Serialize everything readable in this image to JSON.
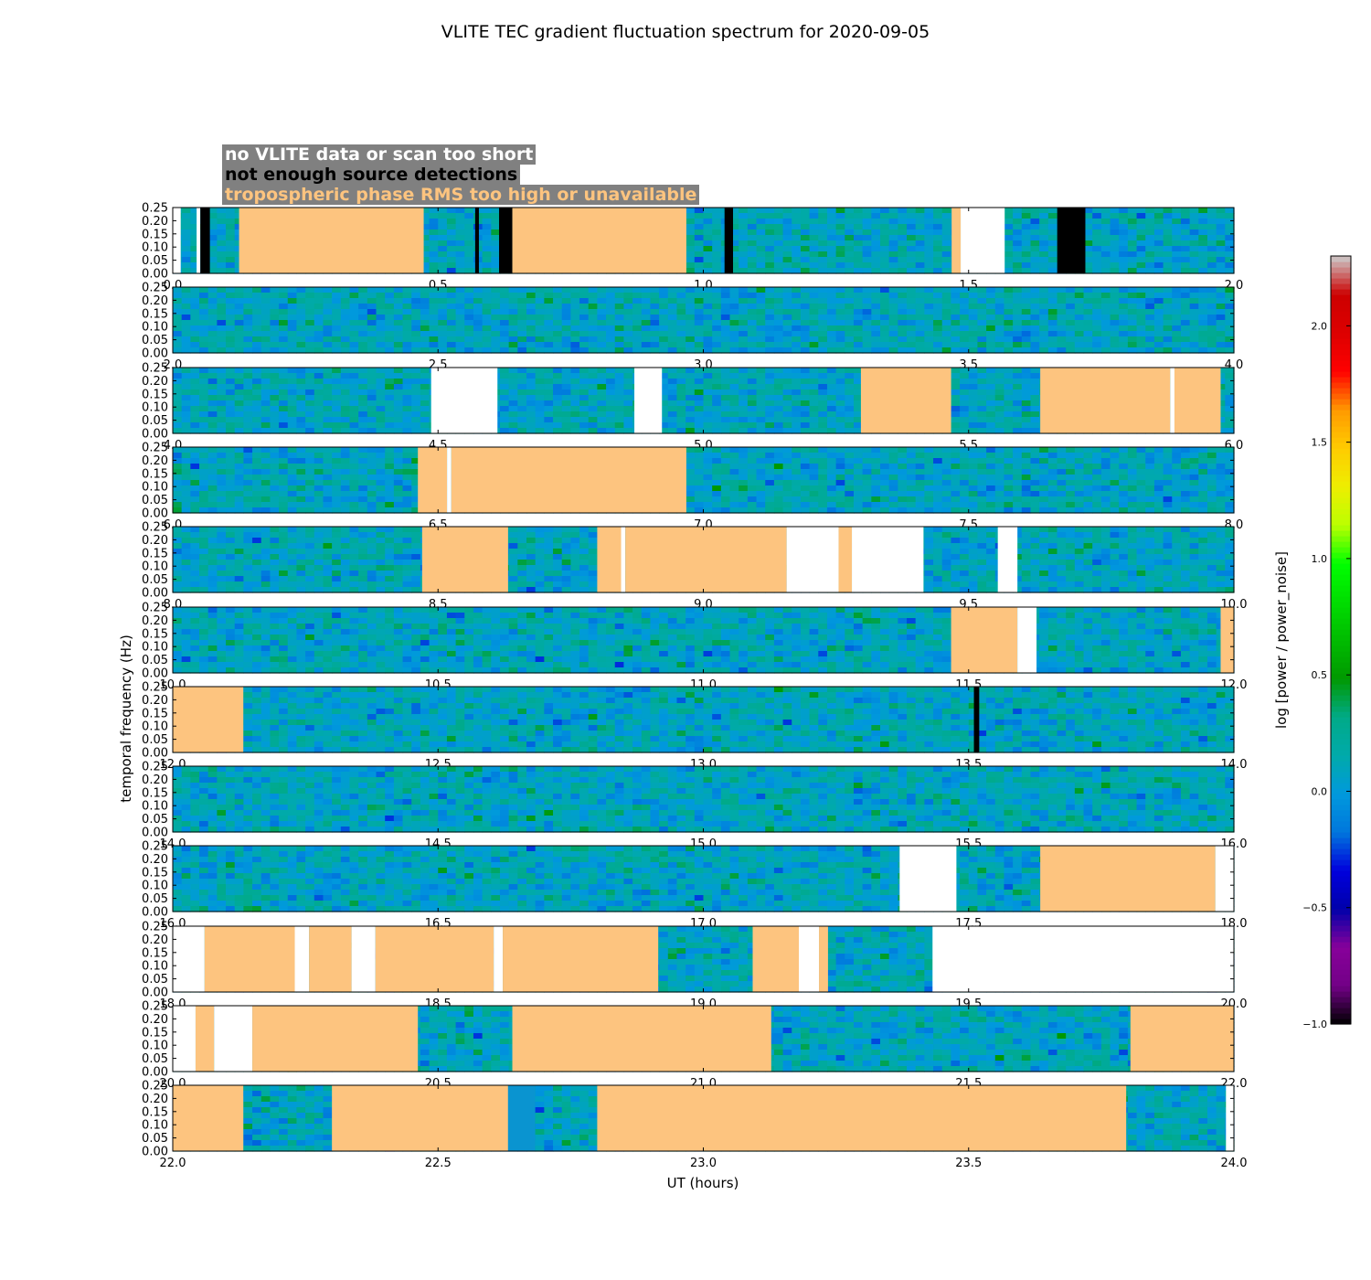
{
  "title": "VLITE TEC gradient fluctuation spectrum for 2020-09-05",
  "legend": [
    {
      "label": "no VLITE data or scan too short",
      "color": "#ffffff"
    },
    {
      "label": "not enough source detections",
      "color": "#000000"
    },
    {
      "label": "tropospheric phase RMS too high or unavailable",
      "color": "#fdc47f"
    }
  ],
  "chart_data": {
    "type": "heatmap",
    "xlabel": "UT (hours)",
    "ylabel": "temporal frequency (Hz)",
    "colorbar_label": "log [power / power_noise]",
    "colorbar_range": [
      -1.0,
      2.3
    ],
    "colorbar_ticks": [
      "2.0",
      "1.5",
      "1.0",
      "0.5",
      "0.0",
      "−0.5",
      "−1.0"
    ],
    "colorbar_tick_values": [
      2.0,
      1.5,
      1.0,
      0.5,
      0.0,
      -0.5,
      -1.0
    ],
    "colorbar_colormap": "nipy_spectral",
    "ylim": [
      0.0,
      0.25
    ],
    "ytick_labels": [
      "0.00",
      "0.05",
      "0.10",
      "0.15",
      "0.20",
      "0.25"
    ],
    "panels": [
      {
        "x_range": [
          0.0,
          2.0
        ],
        "xtick_labels": [
          "0.0",
          "0.5",
          "1.0",
          "1.5",
          "2.0"
        ],
        "masks": [
          {
            "start": 0.0,
            "end": 0.015,
            "flag": "white"
          },
          {
            "start": 0.045,
            "end": 0.052,
            "flag": "white"
          },
          {
            "start": 0.052,
            "end": 0.07,
            "flag": "black"
          },
          {
            "start": 0.125,
            "end": 0.473,
            "flag": "orange"
          },
          {
            "start": 0.57,
            "end": 0.577,
            "flag": "black"
          },
          {
            "start": 0.615,
            "end": 0.64,
            "flag": "black"
          },
          {
            "start": 0.64,
            "end": 0.968,
            "flag": "orange"
          },
          {
            "start": 1.04,
            "end": 1.056,
            "flag": "black"
          },
          {
            "start": 1.468,
            "end": 1.485,
            "flag": "orange"
          },
          {
            "start": 1.485,
            "end": 1.568,
            "flag": "white"
          },
          {
            "start": 1.667,
            "end": 1.72,
            "flag": "black"
          }
        ]
      },
      {
        "x_range": [
          2.0,
          4.0
        ],
        "xtick_labels": [
          "2.0",
          "2.5",
          "3.0",
          "3.5",
          "4.0"
        ],
        "masks": []
      },
      {
        "x_range": [
          4.0,
          6.0
        ],
        "xtick_labels": [
          "4.0",
          "4.5",
          "5.0",
          "5.5",
          "6.0"
        ],
        "masks": [
          {
            "start": 4.487,
            "end": 4.612,
            "flag": "white"
          },
          {
            "start": 4.87,
            "end": 4.922,
            "flag": "white"
          },
          {
            "start": 5.297,
            "end": 5.467,
            "flag": "orange"
          },
          {
            "start": 5.635,
            "end": 5.88,
            "flag": "orange"
          },
          {
            "start": 5.88,
            "end": 5.888,
            "flag": "white"
          },
          {
            "start": 5.888,
            "end": 5.975,
            "flag": "orange"
          }
        ]
      },
      {
        "x_range": [
          6.0,
          8.0
        ],
        "xtick_labels": [
          "6.0",
          "6.5",
          "7.0",
          "7.5",
          "8.0"
        ],
        "masks": [
          {
            "start": 6.462,
            "end": 6.517,
            "flag": "orange"
          },
          {
            "start": 6.517,
            "end": 6.525,
            "flag": "white"
          },
          {
            "start": 6.525,
            "end": 6.968,
            "flag": "orange"
          }
        ]
      },
      {
        "x_range": [
          8.0,
          10.0
        ],
        "xtick_labels": [
          "8.0",
          "8.5",
          "9.0",
          "9.5",
          "10.0"
        ],
        "masks": [
          {
            "start": 8.47,
            "end": 8.632,
            "flag": "orange"
          },
          {
            "start": 8.8,
            "end": 8.845,
            "flag": "orange"
          },
          {
            "start": 8.845,
            "end": 8.853,
            "flag": "white"
          },
          {
            "start": 8.853,
            "end": 9.157,
            "flag": "orange"
          },
          {
            "start": 9.157,
            "end": 9.255,
            "flag": "white"
          },
          {
            "start": 9.255,
            "end": 9.28,
            "flag": "orange"
          },
          {
            "start": 9.28,
            "end": 9.415,
            "flag": "white"
          },
          {
            "start": 9.555,
            "end": 9.592,
            "flag": "white"
          }
        ]
      },
      {
        "x_range": [
          10.0,
          12.0
        ],
        "xtick_labels": [
          "10.0",
          "10.5",
          "11.0",
          "11.5",
          "12.0"
        ],
        "masks": [
          {
            "start": 11.467,
            "end": 11.592,
            "flag": "orange"
          },
          {
            "start": 11.592,
            "end": 11.628,
            "flag": "white"
          },
          {
            "start": 11.975,
            "end": 12.0,
            "flag": "orange"
          }
        ]
      },
      {
        "x_range": [
          12.0,
          14.0
        ],
        "xtick_labels": [
          "12.0",
          "12.5",
          "13.0",
          "13.5",
          "14.0"
        ],
        "masks": [
          {
            "start": 12.0,
            "end": 12.133,
            "flag": "orange"
          },
          {
            "start": 13.51,
            "end": 13.52,
            "flag": "black"
          }
        ]
      },
      {
        "x_range": [
          14.0,
          16.0
        ],
        "xtick_labels": [
          "14.0",
          "14.5",
          "15.0",
          "15.5",
          "16.0"
        ],
        "masks": []
      },
      {
        "x_range": [
          16.0,
          18.0
        ],
        "xtick_labels": [
          "16.0",
          "16.5",
          "17.0",
          "17.5",
          "18.0"
        ],
        "masks": [
          {
            "start": 17.37,
            "end": 17.477,
            "flag": "white"
          },
          {
            "start": 17.635,
            "end": 17.965,
            "flag": "orange"
          },
          {
            "start": 17.965,
            "end": 18.0,
            "flag": "white"
          }
        ]
      },
      {
        "x_range": [
          18.0,
          20.0
        ],
        "xtick_labels": [
          "18.0",
          "18.5",
          "19.0",
          "19.5",
          "20.0"
        ],
        "masks": [
          {
            "start": 18.0,
            "end": 18.06,
            "flag": "white"
          },
          {
            "start": 18.06,
            "end": 18.23,
            "flag": "orange"
          },
          {
            "start": 18.23,
            "end": 18.257,
            "flag": "white"
          },
          {
            "start": 18.257,
            "end": 18.337,
            "flag": "orange"
          },
          {
            "start": 18.337,
            "end": 18.382,
            "flag": "white"
          },
          {
            "start": 18.382,
            "end": 18.605,
            "flag": "orange"
          },
          {
            "start": 18.605,
            "end": 18.622,
            "flag": "white"
          },
          {
            "start": 18.622,
            "end": 18.915,
            "flag": "orange"
          },
          {
            "start": 19.093,
            "end": 19.18,
            "flag": "orange"
          },
          {
            "start": 19.18,
            "end": 19.218,
            "flag": "white"
          },
          {
            "start": 19.218,
            "end": 19.235,
            "flag": "orange"
          },
          {
            "start": 19.432,
            "end": 20.0,
            "flag": "white"
          }
        ]
      },
      {
        "x_range": [
          20.0,
          22.0
        ],
        "xtick_labels": [
          "20.0",
          "20.5",
          "21.0",
          "21.5",
          "22.0"
        ],
        "masks": [
          {
            "start": 20.0,
            "end": 20.043,
            "flag": "white"
          },
          {
            "start": 20.043,
            "end": 20.078,
            "flag": "orange"
          },
          {
            "start": 20.078,
            "end": 20.15,
            "flag": "white"
          },
          {
            "start": 20.15,
            "end": 20.462,
            "flag": "orange"
          },
          {
            "start": 20.64,
            "end": 21.128,
            "flag": "orange"
          },
          {
            "start": 21.805,
            "end": 22.0,
            "flag": "orange"
          }
        ]
      },
      {
        "x_range": [
          22.0,
          24.0
        ],
        "xtick_labels": [
          "22.0",
          "22.5",
          "23.0",
          "23.5",
          "24.0"
        ],
        "masks": [
          {
            "start": 22.0,
            "end": 22.133,
            "flag": "orange"
          },
          {
            "start": 22.3,
            "end": 22.632,
            "flag": "orange"
          },
          {
            "start": 22.632,
            "end": 22.683,
            "flag": "solid"
          },
          {
            "start": 22.8,
            "end": 23.797,
            "flag": "orange"
          },
          {
            "start": 23.985,
            "end": 24.0,
            "flag": "white"
          }
        ]
      }
    ]
  }
}
